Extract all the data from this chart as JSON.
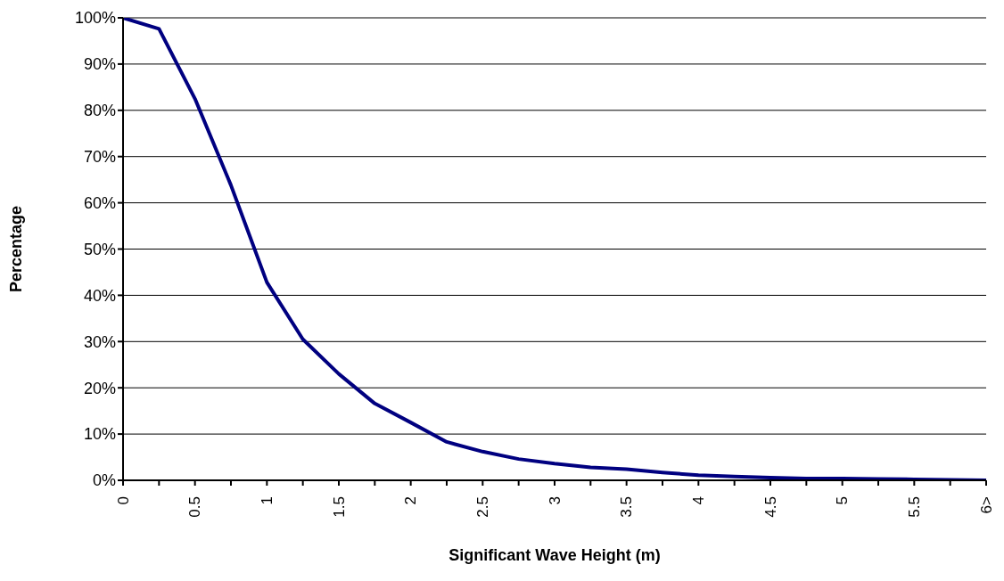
{
  "chart_data": {
    "type": "line",
    "xlabel": "Significant Wave Height (m)",
    "ylabel": "Percentage",
    "categories": [
      "0",
      null,
      "0.5",
      null,
      "1",
      null,
      "1.5",
      null,
      "2",
      null,
      "2.5",
      null,
      "3",
      null,
      "3.5",
      null,
      "4",
      null,
      "4.5",
      null,
      "5",
      null,
      "5.5",
      null,
      "6>"
    ],
    "series": [
      {
        "color": "#000080",
        "values": [
          100,
          97.6,
          82.5,
          63.8,
          42.8,
          30.5,
          23,
          16.6,
          12.5,
          8.3,
          6.2,
          4.6,
          3.6,
          2.8,
          2.4,
          1.7,
          1.1,
          0.8,
          0.6,
          0.4,
          0.4,
          0.3,
          0.2,
          0.1,
          0
        ]
      }
    ],
    "ylim": [
      0,
      100
    ],
    "yticks": [
      {
        "value": 0,
        "label": "0%"
      },
      {
        "value": 10,
        "label": "10%"
      },
      {
        "value": 20,
        "label": "20%"
      },
      {
        "value": 30,
        "label": "30%"
      },
      {
        "value": 40,
        "label": "40%"
      },
      {
        "value": 50,
        "label": "50%"
      },
      {
        "value": 60,
        "label": "60%"
      },
      {
        "value": 70,
        "label": "70%"
      },
      {
        "value": 80,
        "label": "80%"
      },
      {
        "value": 90,
        "label": "90%"
      },
      {
        "value": 100,
        "label": "100%"
      }
    ],
    "grid": "y",
    "legend": false,
    "marker": "none",
    "line_style": "solid"
  }
}
